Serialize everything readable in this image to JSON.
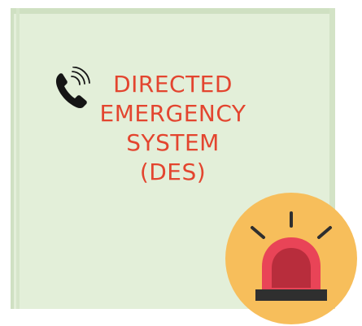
{
  "title_lines": [
    "DIRECTED",
    "EMERGENCY",
    "SYSTEM",
    "(DES)"
  ],
  "icons": {
    "phone": "telephone-ringing-icon",
    "siren": "emergency-siren-icon"
  },
  "colors": {
    "background": "#e3efd9",
    "title_text": "#e3452f",
    "siren_circle": "#f7be5b",
    "siren_light": "#e94457",
    "siren_light_inner": "#b82d3c",
    "siren_base": "#2f2f2f"
  }
}
